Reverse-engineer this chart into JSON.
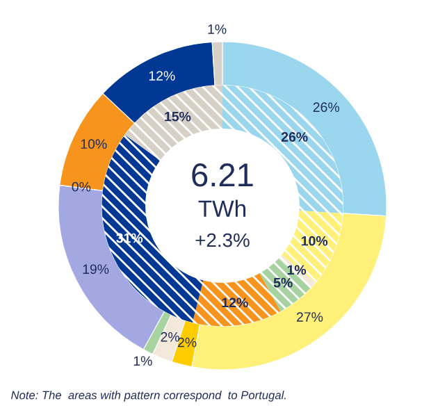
{
  "chart_data": {
    "type": "donut",
    "series": [
      {
        "values": [
          26,
          27,
          2,
          2,
          1,
          19,
          0,
          10,
          12,
          1
        ],
        "colors": [
          "#9ad7ee",
          "#fff07a",
          "#ffcc00",
          "#f3e9da",
          "#a6d3a0",
          "#a3a8e3",
          "#a3a8e3",
          "#f7941d",
          "#003893",
          "#d6d0c6"
        ],
        "value_labels": [
          "26%",
          "27%",
          "2%",
          "2%",
          "1%",
          "19%",
          "0%",
          "10%",
          "12%",
          "1%"
        ]
      },
      {
        "values": [
          26,
          10,
          1,
          5,
          12,
          31,
          15
        ],
        "colors": [
          "#9ad7ee",
          "#fff07a",
          "#f3e9da",
          "#a6d3a0",
          "#f7941d",
          "#003893",
          "#d6d0c6"
        ],
        "value_labels": [
          "26%",
          "10%",
          "1%",
          "5%",
          "12%",
          "31%",
          "15%"
        ]
      }
    ],
    "annotations": [
      "6.21",
      "TWh",
      "+2.3%",
      "Note: The  areas with pattern correspond  to Portugal."
    ]
  }
}
